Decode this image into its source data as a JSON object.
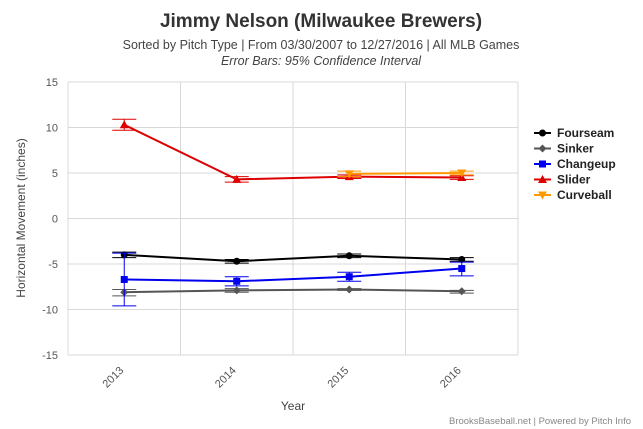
{
  "chart_data": {
    "type": "line",
    "title": "Jimmy Nelson (Milwaukee Brewers)",
    "subtitle": "Sorted by Pitch Type | From 03/30/2007 to 12/27/2016 | All MLB Games",
    "subtitle2": "Error Bars: 95% Confidence Interval",
    "xlabel": "Year",
    "ylabel": "Horizontal Movement (inches)",
    "categories": [
      "2013",
      "2014",
      "2015",
      "2016"
    ],
    "ylim": [
      -15,
      15
    ],
    "yticks": [
      15,
      10,
      5,
      0,
      -5,
      -10,
      -15
    ],
    "grid": true,
    "legend_position": "right",
    "credits": "BrooksBaseball.net | Powered by Pitch Info",
    "series": [
      {
        "name": "Fourseam",
        "color": "#000000",
        "marker": "circle",
        "values": [
          -4.0,
          -4.7,
          -4.1,
          -4.5
        ],
        "err_low": [
          -4.3,
          -4.9,
          -4.3,
          -4.7
        ],
        "err_high": [
          -3.7,
          -4.5,
          -3.9,
          -4.3
        ]
      },
      {
        "name": "Sinker",
        "color": "#555555",
        "marker": "diamond",
        "values": [
          -8.1,
          -7.9,
          -7.8,
          -8.0
        ],
        "err_low": [
          -8.5,
          -8.1,
          -7.9,
          -8.2
        ],
        "err_high": [
          -7.8,
          -7.7,
          -7.7,
          -7.9
        ]
      },
      {
        "name": "Changeup",
        "color": "#0000ee",
        "marker": "square",
        "values": [
          -6.7,
          -6.9,
          -6.4,
          -5.5
        ],
        "err_low": [
          -9.6,
          -7.4,
          -6.9,
          -6.3
        ],
        "err_high": [
          -3.8,
          -6.4,
          -5.9,
          -4.8
        ]
      },
      {
        "name": "Slider",
        "color": "#dd0000",
        "marker": "triangle",
        "values": [
          10.3,
          4.3,
          4.6,
          4.5
        ],
        "err_low": [
          9.7,
          4.0,
          4.4,
          4.3
        ],
        "err_high": [
          10.9,
          4.6,
          4.8,
          4.7
        ]
      },
      {
        "name": "Curveball",
        "color": "#ff9900",
        "marker": "triangle-down",
        "values": [
          null,
          null,
          4.9,
          5.0
        ],
        "err_low": [
          null,
          null,
          4.6,
          4.8
        ],
        "err_high": [
          null,
          null,
          5.2,
          5.2
        ]
      }
    ]
  }
}
